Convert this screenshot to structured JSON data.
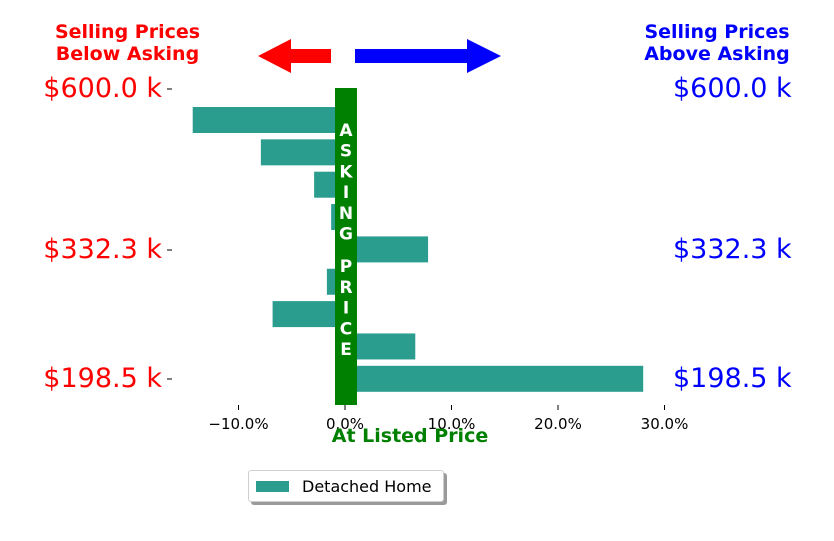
{
  "header_left": "Selling Prices\nBelow Asking",
  "header_right": "Selling Prices\nAbove Asking",
  "price_labels": [
    "$600.0 k",
    "$332.3 k",
    "$198.5 k"
  ],
  "asking_band_text": "ASKING PRICE",
  "colors": {
    "bar": "#2a9d8f",
    "asking_band": "#008000",
    "left_accent": "#ff0000",
    "right_accent": "#0000ff"
  },
  "chart_data": {
    "type": "bar",
    "orientation": "horizontal",
    "xlabel": "At Listed Price",
    "xlim": [
      -15.5,
      30.0
    ],
    "xticks": [
      -10,
      0,
      10,
      20,
      30
    ],
    "xtick_labels": [
      "−10.0%",
      "0.0%",
      "10.0%",
      "20.0%",
      "30.0%"
    ],
    "series": [
      {
        "name": "Detached Home",
        "values": [
          -14.3,
          -7.9,
          -2.9,
          -1.3,
          7.8,
          -1.7,
          -6.8,
          6.6,
          28.0
        ]
      }
    ],
    "ytick_labels_left": [
      "$600.0 k",
      "$332.3 k",
      "$198.5 k"
    ],
    "ytick_labels_right": [
      "$600.0 k",
      "$332.3 k",
      "$198.5 k"
    ],
    "legend_position": "bottom-center",
    "grid": false
  }
}
